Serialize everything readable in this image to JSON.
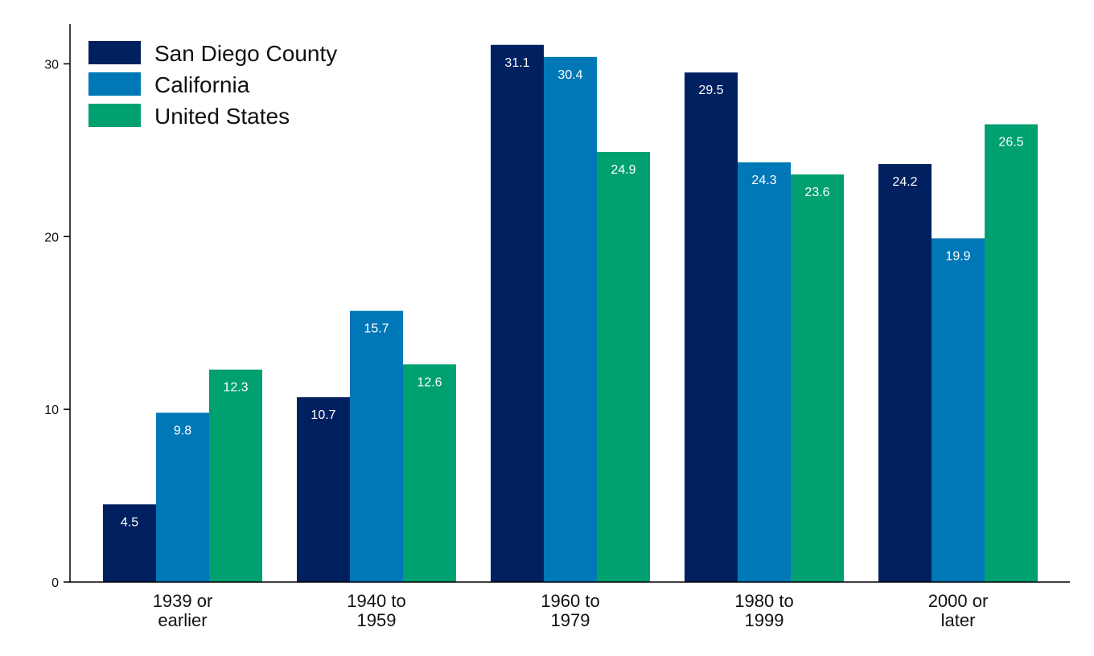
{
  "chart_data": {
    "type": "bar",
    "categories": [
      [
        "1939 or",
        "earlier"
      ],
      [
        "1940 to",
        "1959"
      ],
      [
        "1960 to",
        "1979"
      ],
      [
        "1980 to",
        "1999"
      ],
      [
        "2000 or",
        "later"
      ]
    ],
    "series": [
      {
        "name": "San Diego County",
        "color": "#002060",
        "values": [
          4.5,
          10.7,
          31.1,
          29.5,
          24.2
        ]
      },
      {
        "name": "California",
        "color": "#0077b6",
        "values": [
          9.8,
          15.7,
          30.4,
          24.3,
          19.9
        ]
      },
      {
        "name": "United States",
        "color": "#00a070",
        "values": [
          12.3,
          12.6,
          24.9,
          23.6,
          26.5
        ]
      }
    ],
    "title": "",
    "xlabel": "",
    "ylabel": "",
    "ylim": [
      0,
      32.3
    ],
    "yticks": [
      0,
      10,
      20,
      30
    ],
    "grid": false,
    "legend_position": "top-left",
    "data_labels": true
  }
}
